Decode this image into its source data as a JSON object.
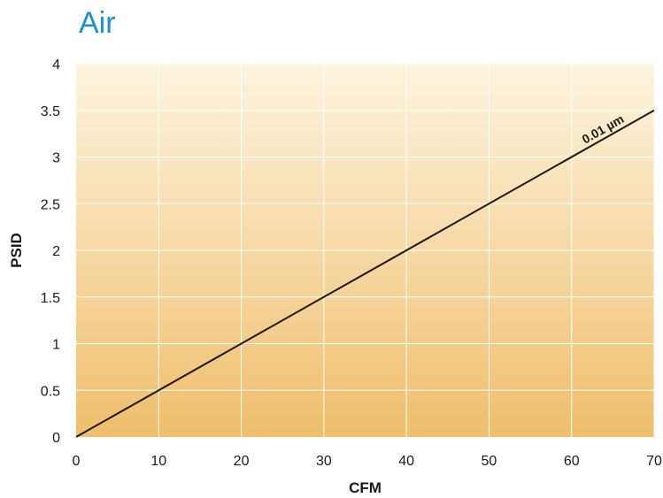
{
  "chart_data": {
    "type": "line",
    "title": "Air",
    "xlabel": "CFM",
    "ylabel": "PSID",
    "xlim": [
      0,
      70
    ],
    "ylim": [
      0,
      4
    ],
    "x_ticks": [
      0,
      10,
      20,
      30,
      40,
      50,
      60,
      70
    ],
    "x_tick_labels": [
      "0",
      "10",
      "20",
      "30",
      "40",
      "50",
      "60",
      "70"
    ],
    "y_ticks": [
      0,
      0.5,
      1,
      1.5,
      2,
      2.5,
      3,
      3.5,
      4
    ],
    "y_tick_labels": [
      "0",
      "0.5",
      "1",
      "1.5",
      "2",
      "2.5",
      "3",
      "3.5",
      "4"
    ],
    "grid": true,
    "series": [
      {
        "name": "0.01 µm",
        "x": [
          0,
          70
        ],
        "y": [
          0,
          3.5
        ]
      }
    ],
    "colors": {
      "title": "#1a8fd0",
      "line": "#1a1a1a",
      "gradient_top": "#fdf4df",
      "gradient_bottom": "#f0be6c",
      "grid": "#ffffff"
    }
  }
}
